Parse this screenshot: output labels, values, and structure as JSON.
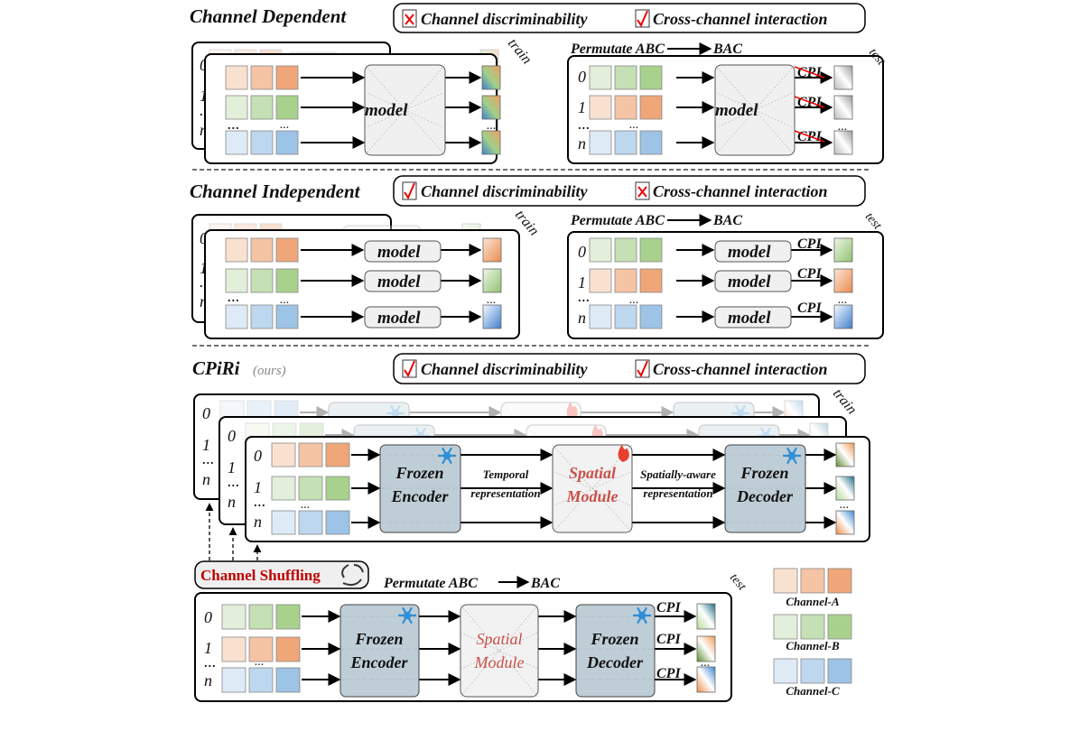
{
  "colors": {
    "channel_a": [
      "#f9e1d0",
      "#f5c4a4",
      "#efa678"
    ],
    "channel_b": [
      "#e2efda",
      "#c5e0b4",
      "#a9d18e"
    ],
    "channel_c": [
      "#deebf7",
      "#bdd7ee",
      "#9dc3e6"
    ],
    "frozen_module": "#b8c8d2",
    "spatial_module": "#f2f2f2",
    "accent_red": "#c00000",
    "snowflake": "#2e8fd6"
  },
  "sections": {
    "channel_dependent": {
      "title": "Channel Dependent",
      "legend": [
        {
          "label": "Channel discriminability",
          "mark": "cross-icon"
        },
        {
          "label": "Cross-channel interaction",
          "mark": "check-icon"
        }
      ],
      "train_label": "train",
      "test_label": "test",
      "permutate": "Permutate ABC",
      "permutate_to": "BAC",
      "model_label": "model",
      "cpi_label": "CPI"
    },
    "channel_independent": {
      "title": "Channel Independent",
      "legend": [
        {
          "label": "Channel discriminability",
          "mark": "check-icon"
        },
        {
          "label": "Cross-channel interaction",
          "mark": "cross-icon"
        }
      ],
      "train_label": "train",
      "test_label": "test",
      "permutate": "Permutate ABC",
      "permutate_to": "BAC",
      "model_label": "model",
      "cpi_label": "CPI"
    },
    "cpiri": {
      "title": "CPiRi",
      "subtitle": "(ours)",
      "legend": [
        {
          "label": "Channel discriminability",
          "mark": "check-icon"
        },
        {
          "label": "Cross-channel interaction",
          "mark": "check-icon"
        }
      ],
      "train_label": "train",
      "test_label": "test",
      "encoder": [
        "Frozen",
        "Encoder"
      ],
      "spatial": [
        "Spatial",
        "Module"
      ],
      "decoder": [
        "Frozen",
        "Decoder"
      ],
      "temporal_rep": [
        "Temporal",
        "representation"
      ],
      "spatial_rep": [
        "Spatially-aware",
        "representation"
      ],
      "shuffling": "Channel Shuffling",
      "permutate": "Permutate ABC",
      "permutate_to": "BAC",
      "cpi_label": "CPI"
    }
  },
  "row_labels": [
    "0",
    "1",
    "...",
    "n"
  ],
  "legend": [
    "Channel-A",
    "Channel-B",
    "Channel-C"
  ]
}
